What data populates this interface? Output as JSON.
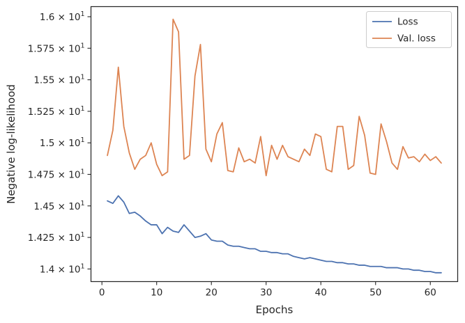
{
  "chart_data": {
    "type": "line",
    "xlabel": "Epochs",
    "ylabel": "Negative log-likelihood",
    "xlim": [
      -2,
      65
    ],
    "ylim": [
      13.9,
      16.08
    ],
    "x_ticks": [
      0,
      10,
      20,
      30,
      40,
      50,
      60
    ],
    "y_ticks": [
      {
        "value": 14.0,
        "mantissa": "1.4"
      },
      {
        "value": 14.25,
        "mantissa": "1.425"
      },
      {
        "value": 14.5,
        "mantissa": "1.45"
      },
      {
        "value": 14.75,
        "mantissa": "1.475"
      },
      {
        "value": 15.0,
        "mantissa": "1.5"
      },
      {
        "value": 15.25,
        "mantissa": "1.525"
      },
      {
        "value": 15.5,
        "mantissa": "1.55"
      },
      {
        "value": 15.75,
        "mantissa": "1.575"
      },
      {
        "value": 16.0,
        "mantissa": "1.6"
      }
    ],
    "y_tick_multiplier": "10",
    "y_tick_exponent": "1",
    "legend_position": "top-right",
    "series": [
      {
        "name": "Loss",
        "color": "#4c72b0",
        "x": [
          1,
          2,
          3,
          4,
          5,
          6,
          7,
          8,
          9,
          10,
          11,
          12,
          13,
          14,
          15,
          16,
          17,
          18,
          19,
          20,
          21,
          22,
          23,
          24,
          25,
          26,
          27,
          28,
          29,
          30,
          31,
          32,
          33,
          34,
          35,
          36,
          37,
          38,
          39,
          40,
          41,
          42,
          43,
          44,
          45,
          46,
          47,
          48,
          49,
          50,
          51,
          52,
          53,
          54,
          55,
          56,
          57,
          58,
          59,
          60,
          61,
          62
        ],
        "values": [
          14.54,
          14.52,
          14.58,
          14.53,
          14.44,
          14.45,
          14.42,
          14.38,
          14.35,
          14.35,
          14.28,
          14.33,
          14.3,
          14.29,
          14.35,
          14.3,
          14.25,
          14.26,
          14.28,
          14.23,
          14.22,
          14.22,
          14.19,
          14.18,
          14.18,
          14.17,
          14.16,
          14.16,
          14.14,
          14.14,
          14.13,
          14.13,
          14.12,
          14.12,
          14.1,
          14.09,
          14.08,
          14.09,
          14.08,
          14.07,
          14.06,
          14.06,
          14.05,
          14.05,
          14.04,
          14.04,
          14.03,
          14.03,
          14.02,
          14.02,
          14.02,
          14.01,
          14.01,
          14.01,
          14.0,
          14.0,
          13.99,
          13.99,
          13.98,
          13.98,
          13.97,
          13.97
        ]
      },
      {
        "name": "Val. loss",
        "color": "#dd8452",
        "x": [
          1,
          2,
          3,
          4,
          5,
          6,
          7,
          8,
          9,
          10,
          11,
          12,
          13,
          14,
          15,
          16,
          17,
          18,
          19,
          20,
          21,
          22,
          23,
          24,
          25,
          26,
          27,
          28,
          29,
          30,
          31,
          32,
          33,
          34,
          35,
          36,
          37,
          38,
          39,
          40,
          41,
          42,
          43,
          44,
          45,
          46,
          47,
          48,
          49,
          50,
          51,
          52,
          53,
          54,
          55,
          56,
          57,
          58,
          59,
          60,
          61,
          62
        ],
        "values": [
          14.9,
          15.1,
          15.6,
          15.13,
          14.92,
          14.79,
          14.87,
          14.9,
          15.0,
          14.83,
          14.74,
          14.77,
          15.98,
          15.88,
          14.87,
          14.9,
          15.53,
          15.78,
          14.95,
          14.85,
          15.07,
          15.16,
          14.78,
          14.77,
          14.96,
          14.85,
          14.87,
          14.84,
          15.05,
          14.74,
          14.98,
          14.87,
          14.98,
          14.89,
          14.87,
          14.85,
          14.95,
          14.9,
          15.07,
          15.05,
          14.79,
          14.77,
          15.13,
          15.13,
          14.79,
          14.82,
          15.21,
          15.06,
          14.76,
          14.75,
          15.15,
          15.01,
          14.84,
          14.79,
          14.97,
          14.88,
          14.89,
          14.85,
          14.91,
          14.86,
          14.89,
          14.84
        ]
      }
    ]
  }
}
